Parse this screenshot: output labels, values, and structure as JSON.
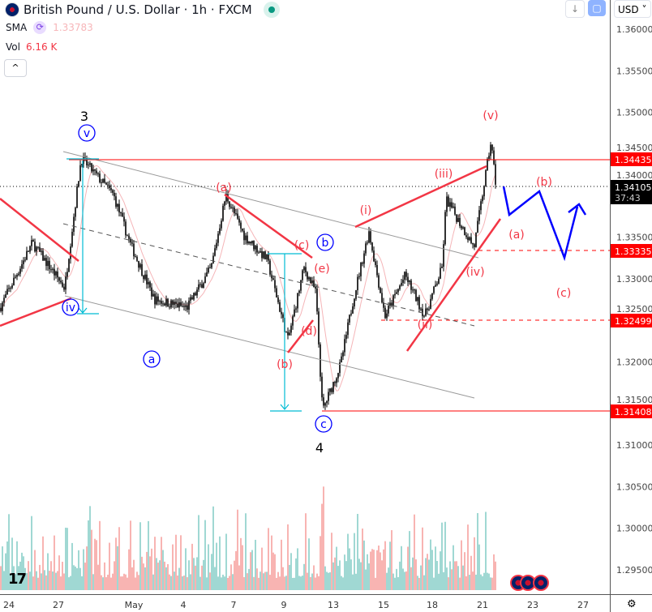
{
  "header": {
    "title": "British Pound / U.S. Dollar · 1h · FXCM",
    "sma_label": "SMA",
    "sma_value": "1.33783",
    "vol_label": "Vol",
    "vol_value": "6.16 K",
    "currency": "USD",
    "collapse_icon": "chevron-up-icon",
    "down_icon": "arrow-down-icon",
    "fullscreen_icon": "fullscreen-icon",
    "settings_icon": "gear-icon",
    "logo": "TV"
  },
  "colors": {
    "candle": "#000000",
    "sma": "#f5b5b8",
    "wave_red": "#f23645",
    "wave_blue": "#0000ff",
    "level": "#ff0000",
    "cyan": "#00bcd4",
    "vol_up": "#26a69a",
    "vol_down": "#ef5350"
  },
  "chart_data": {
    "type": "candlestick",
    "symbol": "GBPUSD",
    "interval": "1h",
    "price_ticks": [
      "1.36000",
      "1.35500",
      "1.35000",
      "1.34500",
      "1.34000",
      "1.33500",
      "1.33000",
      "1.32500",
      "1.32000",
      "1.31500",
      "1.31000",
      "1.30500",
      "1.30000",
      "1.29500"
    ],
    "ylim": [
      1.295,
      1.36
    ],
    "date_ticks": [
      {
        "label": "24",
        "date": "Apr 24"
      },
      {
        "label": "27",
        "date": "Apr 27"
      },
      {
        "label": "May",
        "date": "May 1"
      },
      {
        "label": "4",
        "date": "May 4"
      },
      {
        "label": "7",
        "date": "May 7"
      },
      {
        "label": "9",
        "date": "May 9"
      },
      {
        "label": "13",
        "date": "May 13"
      },
      {
        "label": "15",
        "date": "May 15"
      },
      {
        "label": "18",
        "date": "May 18"
      },
      {
        "label": "21",
        "date": "May 21"
      },
      {
        "label": "23",
        "date": "May 23"
      },
      {
        "label": "27",
        "date": "May 27"
      }
    ],
    "price_path": [
      [
        "Apr 24 00:00",
        1.3265
      ],
      [
        "Apr 25 10:00",
        1.3343
      ],
      [
        "Apr 27 08:00",
        1.3289
      ],
      [
        "Apr 28 05:00",
        1.3445
      ],
      [
        "Apr 29 22:00",
        1.3401
      ],
      [
        "Apr 30 19:00",
        1.3343
      ],
      [
        "May 2 06:00",
        1.3275
      ],
      [
        "May 4 05:00",
        1.3265
      ],
      [
        "May 5 16:00",
        1.3313
      ],
      [
        "May 6 13:00",
        1.3401
      ],
      [
        "May 7 10:00",
        1.3352
      ],
      [
        "May 8 08:00",
        1.3323
      ],
      [
        "May 9 08:00",
        1.3226
      ],
      [
        "May 10 15:00",
        1.3313
      ],
      [
        "May 11 14:00",
        1.3284
      ],
      [
        "May 12 03:00",
        1.3141
      ],
      [
        "May 13 07:00",
        1.3197
      ],
      [
        "May 13 19:00",
        1.3275
      ],
      [
        "May 14 10:00",
        1.3357
      ],
      [
        "May 15 02:00",
        1.3255
      ],
      [
        "May 16 08:00",
        1.3304
      ],
      [
        "May 17 13:00",
        1.3255
      ],
      [
        "May 18 14:00",
        1.3313
      ],
      [
        "May 18 20:00",
        1.3396
      ],
      [
        "May 19 19:00",
        1.3362
      ],
      [
        "May 20 12:00",
        1.3338
      ],
      [
        "May 21 08:00",
        1.3465
      ],
      [
        "May 21 13:00",
        1.34105
      ]
    ],
    "levels": [
      {
        "price": "1.34435",
        "style": "solid"
      },
      {
        "price": "1.33335",
        "style": "dashed"
      },
      {
        "price": "1.32499",
        "style": "dashed"
      },
      {
        "price": "1.31408",
        "style": "solid"
      }
    ],
    "last_price": "1.34105",
    "countdown": "37:43",
    "annotations": {
      "w3": "3",
      "w4": "4",
      "bv": "v",
      "biv": "iv",
      "ba": "a",
      "bb": "b",
      "bc": "c",
      "ra": "(a)",
      "rc": "(c)",
      "re": "(e)",
      "rd": "(d)",
      "rb": "(b)",
      "ri": "(i)",
      "rii": "(ii)",
      "riii": "(iii)",
      "riv": "(iv)",
      "rv": "(v)",
      "pb": "(b)",
      "pa": "(a)",
      "pc": "(c)"
    }
  }
}
